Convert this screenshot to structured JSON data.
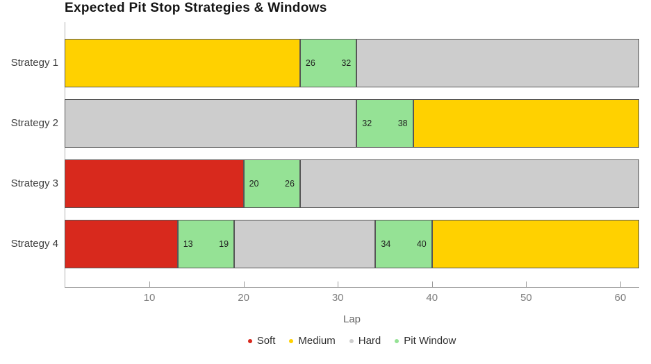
{
  "chart_data": {
    "type": "bar",
    "orientation": "horizontal-stacked",
    "title": "Expected Pit Stop Strategies & Windows",
    "xlabel": "Lap",
    "x_range": [
      1,
      62
    ],
    "x_ticks": [
      10,
      20,
      30,
      40,
      50,
      60
    ],
    "grid": false,
    "legend_position": "bottom-center",
    "colors": {
      "Soft": "#d8291d",
      "Medium": "#ffd100",
      "Hard": "#cdcdcd",
      "Pit Window": "#95e295"
    },
    "legend": [
      "Soft",
      "Medium",
      "Hard",
      "Pit Window"
    ],
    "categories": [
      "Strategy 1",
      "Strategy 2",
      "Strategy 3",
      "Strategy 4"
    ],
    "series": [
      {
        "category": "Strategy 1",
        "segments": [
          {
            "compound": "Medium",
            "start": 1,
            "end": 26,
            "labeled": false
          },
          {
            "compound": "Pit Window",
            "start": 26,
            "end": 32,
            "labeled": true
          },
          {
            "compound": "Hard",
            "start": 32,
            "end": 62,
            "labeled": false
          }
        ]
      },
      {
        "category": "Strategy 2",
        "segments": [
          {
            "compound": "Hard",
            "start": 1,
            "end": 32,
            "labeled": false
          },
          {
            "compound": "Pit Window",
            "start": 32,
            "end": 38,
            "labeled": true
          },
          {
            "compound": "Medium",
            "start": 38,
            "end": 62,
            "labeled": false
          }
        ]
      },
      {
        "category": "Strategy 3",
        "segments": [
          {
            "compound": "Soft",
            "start": 1,
            "end": 20,
            "labeled": false
          },
          {
            "compound": "Pit Window",
            "start": 20,
            "end": 26,
            "labeled": true
          },
          {
            "compound": "Hard",
            "start": 26,
            "end": 62,
            "labeled": false
          }
        ]
      },
      {
        "category": "Strategy 4",
        "segments": [
          {
            "compound": "Soft",
            "start": 1,
            "end": 13,
            "labeled": false
          },
          {
            "compound": "Pit Window",
            "start": 13,
            "end": 19,
            "labeled": true
          },
          {
            "compound": "Hard",
            "start": 19,
            "end": 34,
            "labeled": false
          },
          {
            "compound": "Pit Window",
            "start": 34,
            "end": 40,
            "labeled": true
          },
          {
            "compound": "Medium",
            "start": 40,
            "end": 62,
            "labeled": false
          }
        ]
      }
    ]
  }
}
